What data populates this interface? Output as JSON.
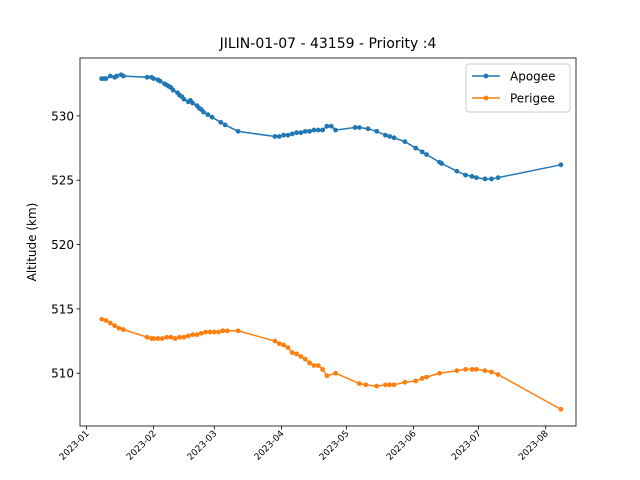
{
  "chart_data": {
    "type": "line",
    "title": "JILIN-01-07 - 43159 - Priority :4",
    "xlabel": "",
    "ylabel": "Altitude (km)",
    "x_axis_type": "date",
    "xlim": [
      "2022-12-29",
      "2023-08-15"
    ],
    "ylim": [
      505.9,
      534.5
    ],
    "yticks": [
      510,
      515,
      520,
      525,
      530
    ],
    "xticks": [
      "2023-01",
      "2023-02",
      "2023-03",
      "2023-04",
      "2023-05",
      "2023-06",
      "2023-07",
      "2023-08"
    ],
    "legend_position": "top-right",
    "grid": false,
    "series": [
      {
        "name": "Apogee",
        "color": "#1f77b4",
        "points": [
          [
            "2023-01-08",
            532.9
          ],
          [
            "2023-01-09",
            532.9
          ],
          [
            "2023-01-10",
            532.9
          ],
          [
            "2023-01-12",
            533.1
          ],
          [
            "2023-01-14",
            533.0
          ],
          [
            "2023-01-15",
            533.1
          ],
          [
            "2023-01-17",
            533.2
          ],
          [
            "2023-01-18",
            533.1
          ],
          [
            "2023-01-29",
            533.0
          ],
          [
            "2023-01-31",
            533.0
          ],
          [
            "2023-02-01",
            532.9
          ],
          [
            "2023-02-03",
            532.8
          ],
          [
            "2023-02-04",
            532.7
          ],
          [
            "2023-02-06",
            532.5
          ],
          [
            "2023-02-07",
            532.4
          ],
          [
            "2023-02-08",
            532.3
          ],
          [
            "2023-02-09",
            532.2
          ],
          [
            "2023-02-10",
            532.0
          ],
          [
            "2023-02-12",
            531.8
          ],
          [
            "2023-02-13",
            531.6
          ],
          [
            "2023-02-14",
            531.5
          ],
          [
            "2023-02-15",
            531.3
          ],
          [
            "2023-02-17",
            531.1
          ],
          [
            "2023-02-18",
            531.2
          ],
          [
            "2023-02-19",
            531.0
          ],
          [
            "2023-02-21",
            530.8
          ],
          [
            "2023-02-22",
            530.6
          ],
          [
            "2023-02-23",
            530.5
          ],
          [
            "2023-02-24",
            530.3
          ],
          [
            "2023-02-26",
            530.1
          ],
          [
            "2023-02-28",
            529.9
          ],
          [
            "2023-03-04",
            529.5
          ],
          [
            "2023-03-06",
            529.3
          ],
          [
            "2023-03-12",
            528.8
          ],
          [
            "2023-03-29",
            528.4
          ],
          [
            "2023-03-31",
            528.4
          ],
          [
            "2023-04-02",
            528.5
          ],
          [
            "2023-04-04",
            528.5
          ],
          [
            "2023-04-06",
            528.6
          ],
          [
            "2023-04-08",
            528.7
          ],
          [
            "2023-04-10",
            528.7
          ],
          [
            "2023-04-12",
            528.8
          ],
          [
            "2023-04-14",
            528.8
          ],
          [
            "2023-04-16",
            528.9
          ],
          [
            "2023-04-18",
            528.9
          ],
          [
            "2023-04-20",
            528.9
          ],
          [
            "2023-04-22",
            529.2
          ],
          [
            "2023-04-24",
            529.2
          ],
          [
            "2023-04-26",
            528.9
          ],
          [
            "2023-05-05",
            529.1
          ],
          [
            "2023-05-07",
            529.1
          ],
          [
            "2023-05-11",
            529.0
          ],
          [
            "2023-05-15",
            528.8
          ],
          [
            "2023-05-19",
            528.5
          ],
          [
            "2023-05-21",
            528.4
          ],
          [
            "2023-05-23",
            528.3
          ],
          [
            "2023-05-28",
            528.0
          ],
          [
            "2023-06-02",
            527.5
          ],
          [
            "2023-06-05",
            527.2
          ],
          [
            "2023-06-07",
            527.0
          ],
          [
            "2023-06-13",
            526.4
          ],
          [
            "2023-06-14",
            526.3
          ],
          [
            "2023-06-21",
            525.7
          ],
          [
            "2023-06-25",
            525.4
          ],
          [
            "2023-06-28",
            525.3
          ],
          [
            "2023-06-30",
            525.2
          ],
          [
            "2023-07-04",
            525.1
          ],
          [
            "2023-07-07",
            525.1
          ],
          [
            "2023-07-10",
            525.2
          ],
          [
            "2023-08-08",
            526.2
          ]
        ]
      },
      {
        "name": "Perigee",
        "color": "#ff7f0e",
        "points": [
          [
            "2023-01-08",
            514.2
          ],
          [
            "2023-01-10",
            514.1
          ],
          [
            "2023-01-12",
            513.9
          ],
          [
            "2023-01-14",
            513.7
          ],
          [
            "2023-01-16",
            513.5
          ],
          [
            "2023-01-18",
            513.4
          ],
          [
            "2023-01-29",
            512.8
          ],
          [
            "2023-01-31",
            512.7
          ],
          [
            "2023-02-01",
            512.7
          ],
          [
            "2023-02-03",
            512.7
          ],
          [
            "2023-02-05",
            512.7
          ],
          [
            "2023-02-07",
            512.8
          ],
          [
            "2023-02-09",
            512.8
          ],
          [
            "2023-02-11",
            512.7
          ],
          [
            "2023-02-13",
            512.8
          ],
          [
            "2023-02-15",
            512.8
          ],
          [
            "2023-02-17",
            512.9
          ],
          [
            "2023-02-19",
            513.0
          ],
          [
            "2023-02-21",
            513.0
          ],
          [
            "2023-02-23",
            513.1
          ],
          [
            "2023-02-25",
            513.2
          ],
          [
            "2023-02-27",
            513.2
          ],
          [
            "2023-03-01",
            513.2
          ],
          [
            "2023-03-03",
            513.2
          ],
          [
            "2023-03-05",
            513.3
          ],
          [
            "2023-03-07",
            513.3
          ],
          [
            "2023-03-12",
            513.3
          ],
          [
            "2023-03-29",
            512.5
          ],
          [
            "2023-03-31",
            512.3
          ],
          [
            "2023-04-02",
            512.2
          ],
          [
            "2023-04-04",
            512.0
          ],
          [
            "2023-04-06",
            511.6
          ],
          [
            "2023-04-08",
            511.5
          ],
          [
            "2023-04-10",
            511.3
          ],
          [
            "2023-04-12",
            511.1
          ],
          [
            "2023-04-14",
            510.8
          ],
          [
            "2023-04-16",
            510.6
          ],
          [
            "2023-04-18",
            510.6
          ],
          [
            "2023-04-20",
            510.3
          ],
          [
            "2023-04-22",
            509.8
          ],
          [
            "2023-04-26",
            510.0
          ],
          [
            "2023-05-07",
            509.2
          ],
          [
            "2023-05-10",
            509.1
          ],
          [
            "2023-05-15",
            509.0
          ],
          [
            "2023-05-19",
            509.1
          ],
          [
            "2023-05-21",
            509.1
          ],
          [
            "2023-05-23",
            509.1
          ],
          [
            "2023-05-28",
            509.3
          ],
          [
            "2023-06-02",
            509.4
          ],
          [
            "2023-06-05",
            509.6
          ],
          [
            "2023-06-07",
            509.7
          ],
          [
            "2023-06-13",
            510.0
          ],
          [
            "2023-06-21",
            510.2
          ],
          [
            "2023-06-25",
            510.3
          ],
          [
            "2023-06-28",
            510.3
          ],
          [
            "2023-06-30",
            510.3
          ],
          [
            "2023-07-04",
            510.2
          ],
          [
            "2023-07-07",
            510.1
          ],
          [
            "2023-07-10",
            509.9
          ],
          [
            "2023-08-08",
            507.2
          ]
        ]
      }
    ]
  }
}
